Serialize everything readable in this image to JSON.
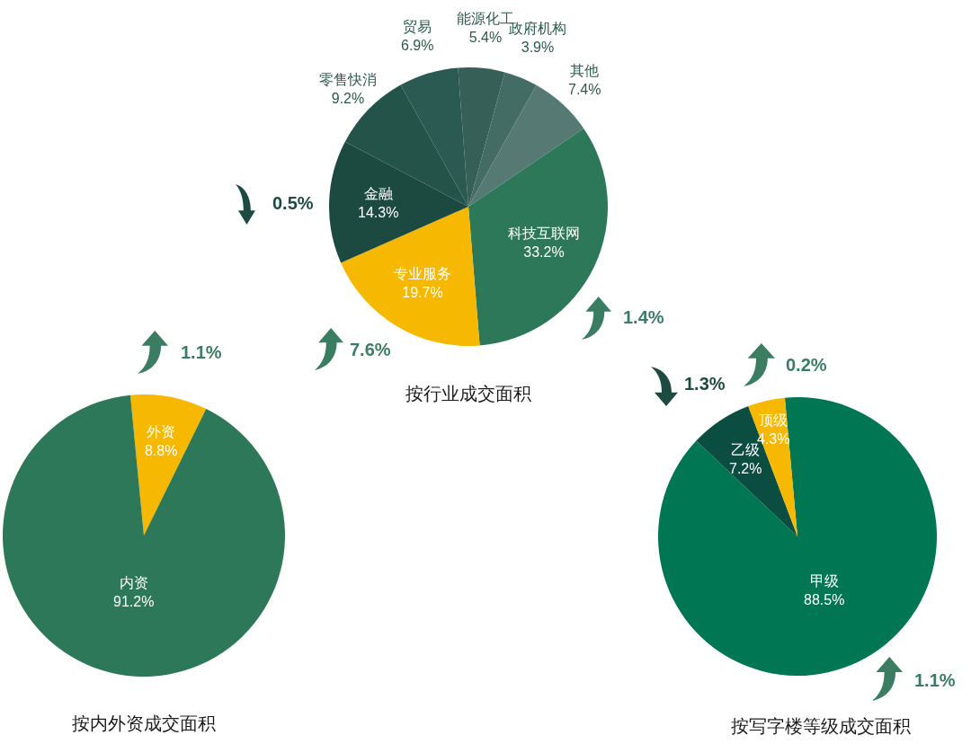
{
  "chart_data": [
    {
      "type": "pie",
      "title": "按行业成交面积",
      "categories": [
        "能源化工",
        "政府机构",
        "其他",
        "科技互联网",
        "专业服务",
        "金融",
        "零售快消",
        "贸易"
      ],
      "values": [
        5.4,
        3.9,
        7.4,
        33.2,
        19.7,
        14.3,
        9.2,
        6.9
      ],
      "value_labels": [
        "5.4%",
        "3.9%",
        "7.4%",
        "33.2%",
        "19.7%",
        "14.3%",
        "9.2%",
        "6.9%"
      ],
      "colors": [
        "#365f58",
        "#436c65",
        "#567a73",
        "#2d7858",
        "#f6b800",
        "#1c4a40",
        "#24534a",
        "#2b5a52"
      ],
      "annotations": [
        "0.5%",
        "1.4%",
        "7.6%"
      ],
      "legend": false
    },
    {
      "type": "pie",
      "title": "按内外资成交面积",
      "categories": [
        "外资",
        "内资"
      ],
      "values": [
        8.8,
        91.2
      ],
      "value_labels": [
        "8.8%",
        "91.2%"
      ],
      "colors": [
        "#f6b800",
        "#2d7858"
      ],
      "annotations": [
        "1.1%"
      ],
      "legend": false
    },
    {
      "type": "pie",
      "title": "按写字楼等级成交面积",
      "categories": [
        "甲级",
        "乙级",
        "顶级"
      ],
      "values": [
        88.5,
        7.2,
        4.3
      ],
      "value_labels": [
        "88.5%",
        "7.2%",
        "4.3%"
      ],
      "colors": [
        "#017652",
        "#0b4d40",
        "#f6b800"
      ],
      "annotations": [
        "0.2%",
        "1.3%",
        "1.1%"
      ],
      "legend": false
    }
  ]
}
